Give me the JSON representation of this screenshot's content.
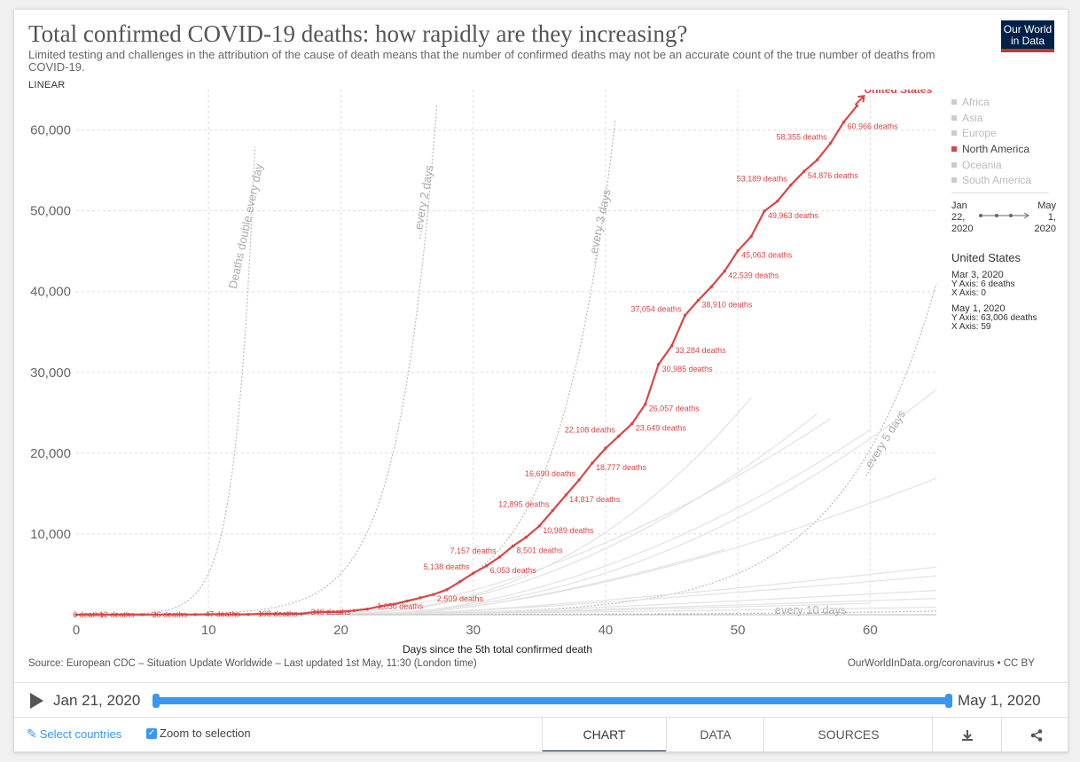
{
  "title": "Total confirmed COVID-19 deaths: how rapidly are they increasing?",
  "subtitle": "Limited testing and challenges in the attribution of the cause of death means that the number of confirmed deaths may not be an accurate count of the true number of deaths from COVID-19.",
  "scale_label": "LINEAR",
  "logo": {
    "line1": "Our World",
    "line2": "in Data"
  },
  "legend": {
    "items": [
      {
        "label": "Africa",
        "active": false
      },
      {
        "label": "Asia",
        "active": false
      },
      {
        "label": "Europe",
        "active": false
      },
      {
        "label": "North America",
        "active": true
      },
      {
        "label": "Oceania",
        "active": false
      },
      {
        "label": "South America",
        "active": false
      }
    ],
    "mini_start": {
      "l1": "Jan",
      "l2": "22,",
      "l3": "2020"
    },
    "mini_end": {
      "l1": "May",
      "l2": "1,",
      "l3": "2020"
    }
  },
  "tooltip": {
    "country": "United States",
    "start": {
      "date": "Mar 3, 2020",
      "y": "Y Axis: 6 deaths",
      "x": "X Axis: 0"
    },
    "end": {
      "date": "May 1, 2020",
      "y": "Y Axis: 63,006 deaths",
      "x": "X Axis: 59"
    }
  },
  "source": "Source: European CDC – Situation Update Worldwide – Last updated 1st May, 11:30 (London time)",
  "source_right": "OurWorldInData.org/coronavirus • CC BY",
  "timeline": {
    "start": "Jan 21, 2020",
    "end": "May 1, 2020"
  },
  "controls": {
    "select_countries": "Select countries",
    "zoom": "Zoom to selection",
    "tabs": [
      "CHART",
      "DATA",
      "SOURCES"
    ],
    "download_icon": "download-icon",
    "share_icon": "share-icon"
  },
  "colors": {
    "accent": "#d94645",
    "brand": "#002147",
    "timeline": "#3897f0"
  },
  "chart_data": {
    "type": "line",
    "title": "Total confirmed COVID-19 deaths: how rapidly are they increasing?",
    "xlabel": "Days since the 5th total confirmed death",
    "ylabel": "",
    "xlim": [
      0,
      65
    ],
    "ylim": [
      0,
      65000
    ],
    "xticks": [
      0,
      10,
      20,
      30,
      40,
      50,
      60
    ],
    "yticks": [
      10000,
      20000,
      30000,
      40000,
      50000,
      60000
    ],
    "ytick_labels": [
      "10,000",
      "20,000",
      "30,000",
      "40,000",
      "50,000",
      "60,000"
    ],
    "grid": true,
    "series": [
      {
        "name": "United States",
        "color": "#d94645",
        "x": [
          0,
          1,
          2,
          3,
          4,
          5,
          6,
          7,
          8,
          9,
          10,
          11,
          12,
          13,
          14,
          15,
          16,
          17,
          18,
          19,
          20,
          21,
          22,
          23,
          24,
          25,
          26,
          27,
          28,
          29,
          30,
          31,
          32,
          33,
          34,
          35,
          36,
          37,
          38,
          39,
          40,
          41,
          42,
          43,
          44,
          45,
          46,
          47,
          48,
          49,
          50,
          51,
          52,
          53,
          54,
          55,
          56,
          57,
          58,
          59
        ],
        "values": [
          6,
          9,
          12,
          12,
          12,
          12,
          26,
          26,
          26,
          26,
          47,
          47,
          47,
          47,
          108,
          108,
          108,
          108,
          340,
          340,
          340,
          520,
          700,
          1050,
          1300,
          1700,
          2100,
          2509,
          3100,
          4100,
          5138,
          6053,
          7157,
          8501,
          9600,
          10989,
          12895,
          14817,
          16690,
          18777,
          20600,
          22108,
          23649,
          26057,
          30985,
          33284,
          37054,
          38910,
          40600,
          42539,
          45063,
          46800,
          49963,
          51200,
          53189,
          54876,
          56300,
          58355,
          60966,
          63006
        ]
      }
    ],
    "point_labels": [
      {
        "x": 0,
        "label": "6 deaths"
      },
      {
        "x": 2,
        "label": "12 deaths"
      },
      {
        "x": 6,
        "label": "26 deaths"
      },
      {
        "x": 10,
        "label": "47 deaths"
      },
      {
        "x": 14,
        "label": "108 deaths"
      },
      {
        "x": 18,
        "label": "340 deaths"
      },
      {
        "x": 23,
        "label": "1,050 deaths"
      },
      {
        "x": 27,
        "label": "2,509 deaths"
      },
      {
        "x": 30,
        "label": "5,138 deaths"
      },
      {
        "x": 31,
        "label": "6,053 deaths"
      },
      {
        "x": 32,
        "label": "7,157 deaths"
      },
      {
        "x": 33,
        "label": "8,501 deaths"
      },
      {
        "x": 35,
        "label": "10,989 deaths"
      },
      {
        "x": 36,
        "label": "12,895 deaths"
      },
      {
        "x": 37,
        "label": "14,817 deaths"
      },
      {
        "x": 38,
        "label": "16,690 deaths"
      },
      {
        "x": 39,
        "label": "18,777 deaths"
      },
      {
        "x": 41,
        "label": "22,108 deaths"
      },
      {
        "x": 42,
        "label": "23,649 deaths"
      },
      {
        "x": 43,
        "label": "26,057 deaths"
      },
      {
        "x": 44,
        "label": "30,985 deaths"
      },
      {
        "x": 45,
        "label": "33,284 deaths"
      },
      {
        "x": 46,
        "label": "37,054 deaths"
      },
      {
        "x": 47,
        "label": "38,910 deaths"
      },
      {
        "x": 49,
        "label": "42,539 deaths"
      },
      {
        "x": 50,
        "label": "45,063 deaths"
      },
      {
        "x": 52,
        "label": "49,963 deaths"
      },
      {
        "x": 54,
        "label": "53,189 deaths"
      },
      {
        "x": 55,
        "label": "54,876 deaths"
      },
      {
        "x": 57,
        "label": "58,355 deaths"
      },
      {
        "x": 58,
        "label": "60,966 deaths"
      }
    ],
    "series_end_label": "United States",
    "reference_lines": [
      {
        "label": "Deaths double every day",
        "doubling_days": 1
      },
      {
        "label": "...every 2 days",
        "doubling_days": 2
      },
      {
        "label": "...every 3 days",
        "doubling_days": 3
      },
      {
        "label": "...every 5 days",
        "doubling_days": 5
      },
      {
        "label": "every 10 days",
        "doubling_days": 10
      }
    ]
  }
}
